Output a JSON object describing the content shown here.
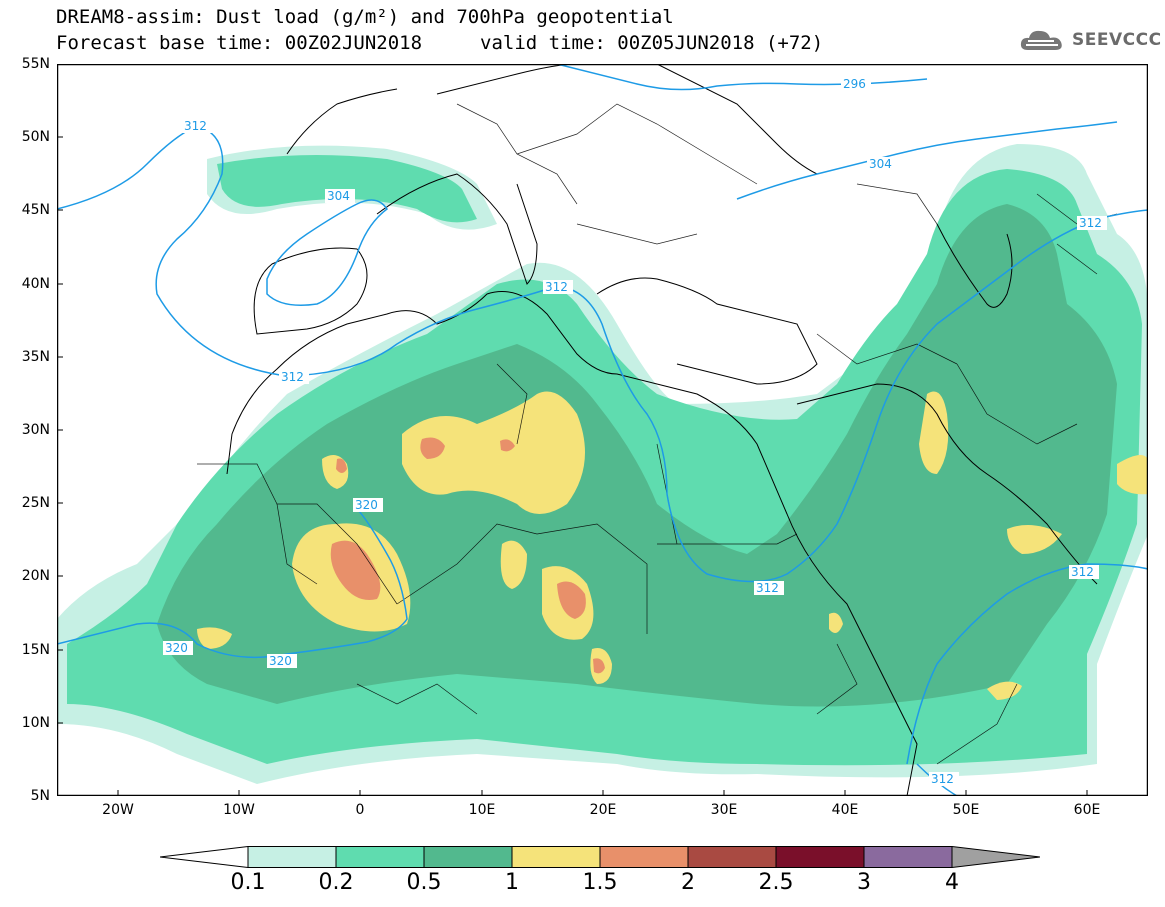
{
  "header": {
    "line1": "DREAM8-assim: Dust load (g/m²) and 700hPa geopotential",
    "line2_base": "Forecast base time: 00Z02JUN2018",
    "line2_valid": "valid time: 00Z05JUN2018 (+72)",
    "logo_text": "SEEVCCC"
  },
  "axes": {
    "lat_labels": [
      "55N",
      "50N",
      "45N",
      "40N",
      "35N",
      "30N",
      "25N",
      "20N",
      "15N",
      "10N",
      "5N"
    ],
    "lon_labels": [
      "20W",
      "10W",
      "0",
      "10E",
      "20E",
      "30E",
      "40E",
      "50E",
      "60E"
    ]
  },
  "contours": {
    "labels": [
      "296",
      "304",
      "304",
      "312",
      "312",
      "312",
      "312",
      "312",
      "312",
      "320",
      "320",
      "320"
    ]
  },
  "legend": {
    "levels": [
      "0.1",
      "0.2",
      "0.5",
      "1",
      "1.5",
      "2",
      "2.5",
      "3",
      "4"
    ],
    "colors": [
      "#c6f0e4",
      "#5fdcaf",
      "#52b98e",
      "#f5e37a",
      "#e8906a",
      "#a94a42",
      "#7a0f2a",
      "#8a6a9e"
    ],
    "under_color": "#ffffff",
    "over_color": "#a0a0a0",
    "contour_color": "#1e9be6"
  }
}
